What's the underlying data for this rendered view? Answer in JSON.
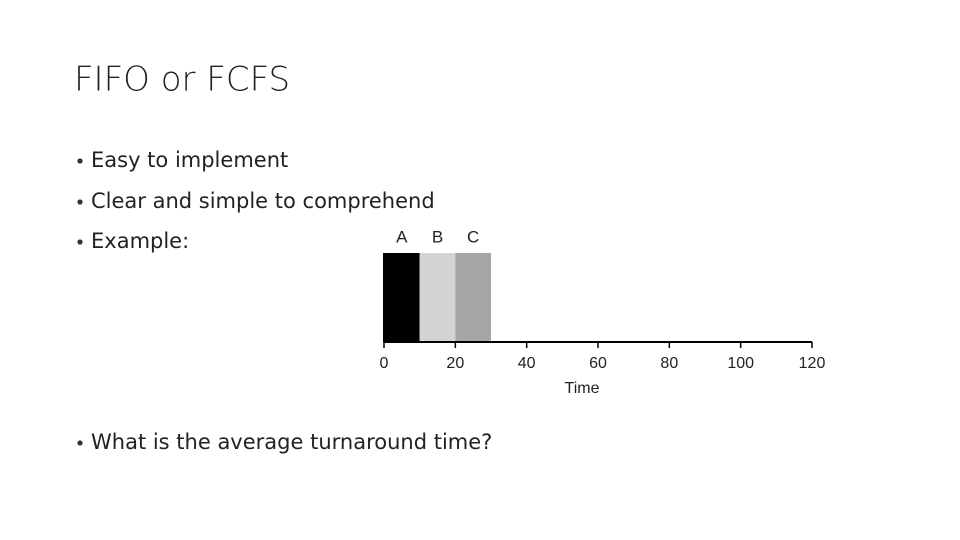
{
  "title": "FIFO or FCFS",
  "bullets": [
    "Easy to implement",
    "Clear and simple to comprehend",
    "Example:",
    "What is the average turnaround time?"
  ],
  "chart_data": {
    "type": "bar",
    "orientation": "horizontal",
    "stacked": true,
    "series": [
      {
        "name": "A",
        "color": "#000000",
        "values": [
          10
        ]
      },
      {
        "name": "B",
        "color": "#d4d4d4",
        "values": [
          10
        ]
      },
      {
        "name": "C",
        "color": "#a6a6a6",
        "values": [
          10
        ]
      }
    ],
    "x_label": "Time",
    "xlim": [
      0,
      120
    ],
    "xticks": [
      0,
      20,
      40,
      60,
      80,
      100,
      120
    ]
  }
}
